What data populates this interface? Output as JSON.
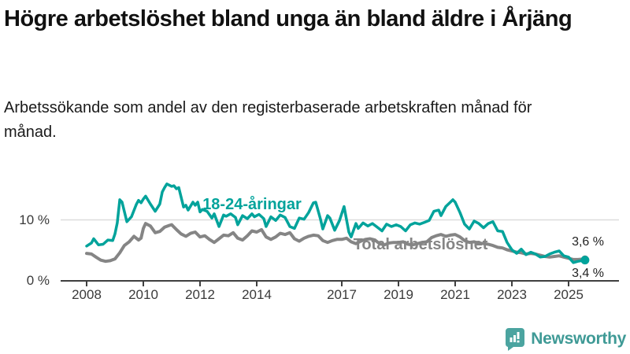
{
  "chart_data": {
    "type": "line",
    "title": "Högre arbetslöshet bland unga än bland äldre i Årjäng",
    "subtitle": "Arbetssökande som andel av den registerbaserade arbetskraften månad för månad.",
    "unit": "%",
    "x_axis": {
      "ticks": [
        2008,
        2010,
        2012,
        2014,
        2017,
        2019,
        2021,
        2023,
        2025
      ],
      "range": [
        2007.1,
        2026.8
      ]
    },
    "y_axis": {
      "tick_labels": [
        "10 %",
        "0 %"
      ],
      "tick_values": [
        10,
        0
      ],
      "range": [
        0,
        17
      ],
      "gridline_at": 10
    },
    "legend_position": "inline-labels-on-lines",
    "series": [
      {
        "name": "18-24-åringar",
        "color": "#00a39b",
        "end_label": "3,4 %",
        "end_value": 3.4,
        "points": [
          [
            2008.0,
            5.7
          ],
          [
            2008.17,
            6.2
          ],
          [
            2008.25,
            6.9
          ],
          [
            2008.42,
            5.9
          ],
          [
            2008.58,
            6.0
          ],
          [
            2008.75,
            6.7
          ],
          [
            2008.92,
            6.6
          ],
          [
            2009.0,
            7.7
          ],
          [
            2009.08,
            9.5
          ],
          [
            2009.17,
            13.3
          ],
          [
            2009.25,
            12.9
          ],
          [
            2009.42,
            9.7
          ],
          [
            2009.58,
            10.5
          ],
          [
            2009.75,
            12.5
          ],
          [
            2009.83,
            13.2
          ],
          [
            2009.92,
            12.8
          ],
          [
            2010.0,
            13.4
          ],
          [
            2010.08,
            13.9
          ],
          [
            2010.25,
            12.6
          ],
          [
            2010.42,
            11.4
          ],
          [
            2010.58,
            12.6
          ],
          [
            2010.67,
            14.6
          ],
          [
            2010.75,
            15.3
          ],
          [
            2010.83,
            15.9
          ],
          [
            2011.0,
            15.5
          ],
          [
            2011.08,
            15.6
          ],
          [
            2011.17,
            15.1
          ],
          [
            2011.25,
            15.3
          ],
          [
            2011.42,
            12.1
          ],
          [
            2011.5,
            12.4
          ],
          [
            2011.58,
            11.6
          ],
          [
            2011.75,
            12.9
          ],
          [
            2011.83,
            12.4
          ],
          [
            2011.92,
            12.9
          ],
          [
            2012.0,
            11.3
          ],
          [
            2012.08,
            11.7
          ],
          [
            2012.25,
            11.4
          ],
          [
            2012.42,
            10.3
          ],
          [
            2012.5,
            11.0
          ],
          [
            2012.67,
            8.9
          ],
          [
            2012.83,
            10.8
          ],
          [
            2012.92,
            10.6
          ],
          [
            2013.08,
            11.0
          ],
          [
            2013.25,
            10.4
          ],
          [
            2013.33,
            9.2
          ],
          [
            2013.5,
            10.7
          ],
          [
            2013.67,
            10.2
          ],
          [
            2013.83,
            11.0
          ],
          [
            2013.92,
            10.5
          ],
          [
            2014.08,
            10.9
          ],
          [
            2014.25,
            10.2
          ],
          [
            2014.33,
            8.9
          ],
          [
            2014.5,
            10.5
          ],
          [
            2014.67,
            9.9
          ],
          [
            2014.83,
            10.8
          ],
          [
            2015.0,
            10.4
          ],
          [
            2015.17,
            8.9
          ],
          [
            2015.33,
            8.6
          ],
          [
            2015.5,
            10.3
          ],
          [
            2015.67,
            10.1
          ],
          [
            2015.83,
            11.2
          ],
          [
            2016.0,
            12.8
          ],
          [
            2016.08,
            12.9
          ],
          [
            2016.25,
            10.1
          ],
          [
            2016.33,
            8.5
          ],
          [
            2016.5,
            10.7
          ],
          [
            2016.58,
            10.3
          ],
          [
            2016.75,
            8.3
          ],
          [
            2016.92,
            9.9
          ],
          [
            2017.08,
            12.2
          ],
          [
            2017.25,
            8.0
          ],
          [
            2017.33,
            7.2
          ],
          [
            2017.5,
            9.4
          ],
          [
            2017.58,
            8.6
          ],
          [
            2017.75,
            9.5
          ],
          [
            2017.92,
            9.0
          ],
          [
            2018.08,
            9.4
          ],
          [
            2018.25,
            8.8
          ],
          [
            2018.42,
            8.2
          ],
          [
            2018.58,
            9.3
          ],
          [
            2018.75,
            8.9
          ],
          [
            2018.92,
            9.2
          ],
          [
            2019.08,
            8.9
          ],
          [
            2019.25,
            8.2
          ],
          [
            2019.42,
            9.2
          ],
          [
            2019.58,
            9.5
          ],
          [
            2019.75,
            9.3
          ],
          [
            2019.92,
            9.6
          ],
          [
            2020.08,
            9.9
          ],
          [
            2020.25,
            11.4
          ],
          [
            2020.42,
            11.6
          ],
          [
            2020.5,
            10.7
          ],
          [
            2020.67,
            12.2
          ],
          [
            2020.83,
            12.9
          ],
          [
            2020.92,
            13.3
          ],
          [
            2021.0,
            12.9
          ],
          [
            2021.17,
            11.2
          ],
          [
            2021.33,
            9.3
          ],
          [
            2021.5,
            8.5
          ],
          [
            2021.67,
            9.8
          ],
          [
            2021.83,
            9.4
          ],
          [
            2022.0,
            8.7
          ],
          [
            2022.17,
            9.4
          ],
          [
            2022.33,
            9.7
          ],
          [
            2022.5,
            8.2
          ],
          [
            2022.67,
            8.1
          ],
          [
            2022.83,
            6.3
          ],
          [
            2023.0,
            5.1
          ],
          [
            2023.17,
            4.5
          ],
          [
            2023.33,
            5.2
          ],
          [
            2023.5,
            4.3
          ],
          [
            2023.67,
            4.7
          ],
          [
            2023.83,
            4.4
          ],
          [
            2024.0,
            3.9
          ],
          [
            2024.17,
            4.0
          ],
          [
            2024.33,
            4.4
          ],
          [
            2024.5,
            4.7
          ],
          [
            2024.67,
            4.9
          ],
          [
            2024.83,
            4.1
          ],
          [
            2025.0,
            3.9
          ],
          [
            2025.17,
            3.0
          ],
          [
            2025.33,
            3.2
          ],
          [
            2025.58,
            3.4
          ]
        ]
      },
      {
        "name": "Total arbetslöshet",
        "color": "#858585",
        "end_label": "3,6 %",
        "end_value": 3.6,
        "points": [
          [
            2008.0,
            4.5
          ],
          [
            2008.17,
            4.4
          ],
          [
            2008.33,
            3.9
          ],
          [
            2008.5,
            3.4
          ],
          [
            2008.67,
            3.2
          ],
          [
            2008.83,
            3.3
          ],
          [
            2009.0,
            3.6
          ],
          [
            2009.17,
            4.6
          ],
          [
            2009.33,
            5.8
          ],
          [
            2009.5,
            6.4
          ],
          [
            2009.67,
            7.3
          ],
          [
            2009.83,
            6.7
          ],
          [
            2009.92,
            7.0
          ],
          [
            2010.0,
            8.6
          ],
          [
            2010.08,
            9.4
          ],
          [
            2010.25,
            9.0
          ],
          [
            2010.42,
            7.9
          ],
          [
            2010.58,
            8.1
          ],
          [
            2010.75,
            8.8
          ],
          [
            2010.92,
            9.1
          ],
          [
            2011.0,
            9.2
          ],
          [
            2011.17,
            8.4
          ],
          [
            2011.33,
            7.7
          ],
          [
            2011.5,
            7.3
          ],
          [
            2011.67,
            7.8
          ],
          [
            2011.83,
            8.0
          ],
          [
            2012.0,
            7.2
          ],
          [
            2012.17,
            7.4
          ],
          [
            2012.33,
            6.8
          ],
          [
            2012.5,
            6.3
          ],
          [
            2012.67,
            6.9
          ],
          [
            2012.83,
            7.5
          ],
          [
            2013.0,
            7.4
          ],
          [
            2013.17,
            7.9
          ],
          [
            2013.33,
            7.0
          ],
          [
            2013.5,
            6.7
          ],
          [
            2013.67,
            7.4
          ],
          [
            2013.83,
            8.2
          ],
          [
            2014.0,
            8.0
          ],
          [
            2014.17,
            8.4
          ],
          [
            2014.33,
            7.2
          ],
          [
            2014.5,
            6.8
          ],
          [
            2014.67,
            7.2
          ],
          [
            2014.83,
            7.8
          ],
          [
            2015.0,
            7.6
          ],
          [
            2015.17,
            7.9
          ],
          [
            2015.33,
            6.9
          ],
          [
            2015.5,
            6.5
          ],
          [
            2015.67,
            7.0
          ],
          [
            2015.83,
            7.3
          ],
          [
            2016.0,
            7.5
          ],
          [
            2016.17,
            7.4
          ],
          [
            2016.33,
            6.6
          ],
          [
            2016.5,
            6.3
          ],
          [
            2016.67,
            6.6
          ],
          [
            2016.83,
            6.8
          ],
          [
            2017.0,
            6.8
          ],
          [
            2017.17,
            7.0
          ],
          [
            2017.33,
            6.4
          ],
          [
            2017.5,
            6.1
          ],
          [
            2017.67,
            6.5
          ],
          [
            2017.83,
            6.8
          ],
          [
            2018.0,
            6.9
          ],
          [
            2018.17,
            6.7
          ],
          [
            2018.33,
            6.1
          ],
          [
            2018.5,
            5.9
          ],
          [
            2018.67,
            6.2
          ],
          [
            2018.83,
            6.3
          ],
          [
            2019.0,
            6.3
          ],
          [
            2019.17,
            6.4
          ],
          [
            2019.33,
            6.0
          ],
          [
            2019.5,
            5.9
          ],
          [
            2019.67,
            6.1
          ],
          [
            2019.83,
            6.3
          ],
          [
            2020.0,
            6.4
          ],
          [
            2020.17,
            7.1
          ],
          [
            2020.33,
            7.4
          ],
          [
            2020.5,
            7.6
          ],
          [
            2020.67,
            7.3
          ],
          [
            2020.83,
            7.5
          ],
          [
            2021.0,
            7.6
          ],
          [
            2021.17,
            7.2
          ],
          [
            2021.33,
            6.6
          ],
          [
            2021.5,
            6.3
          ],
          [
            2021.67,
            6.4
          ],
          [
            2021.83,
            6.2
          ],
          [
            2022.0,
            6.1
          ],
          [
            2022.17,
            6.0
          ],
          [
            2022.33,
            5.8
          ],
          [
            2022.5,
            5.5
          ],
          [
            2022.67,
            5.4
          ],
          [
            2022.83,
            5.1
          ],
          [
            2023.0,
            4.9
          ],
          [
            2023.17,
            4.7
          ],
          [
            2023.33,
            4.6
          ],
          [
            2023.5,
            4.4
          ],
          [
            2023.67,
            4.5
          ],
          [
            2023.83,
            4.4
          ],
          [
            2024.0,
            4.2
          ],
          [
            2024.17,
            4.0
          ],
          [
            2024.33,
            3.9
          ],
          [
            2024.5,
            4.0
          ],
          [
            2024.67,
            4.1
          ],
          [
            2024.83,
            3.9
          ],
          [
            2025.0,
            3.7
          ],
          [
            2025.17,
            3.5
          ],
          [
            2025.33,
            3.5
          ],
          [
            2025.58,
            3.6
          ]
        ]
      }
    ]
  },
  "footer": {
    "brand": "Newsworthy",
    "logo_icon": "bar-chart-speech-bubble-icon"
  },
  "colors": {
    "accent_teal": "#00a39b",
    "series_gray": "#858585",
    "logo_teal": "#4ba4a0",
    "logo_text_teal": "#3f9a96",
    "axis": "#3f3f3f",
    "gridline": "#dcdcdc",
    "text": "#1a1a1a"
  }
}
